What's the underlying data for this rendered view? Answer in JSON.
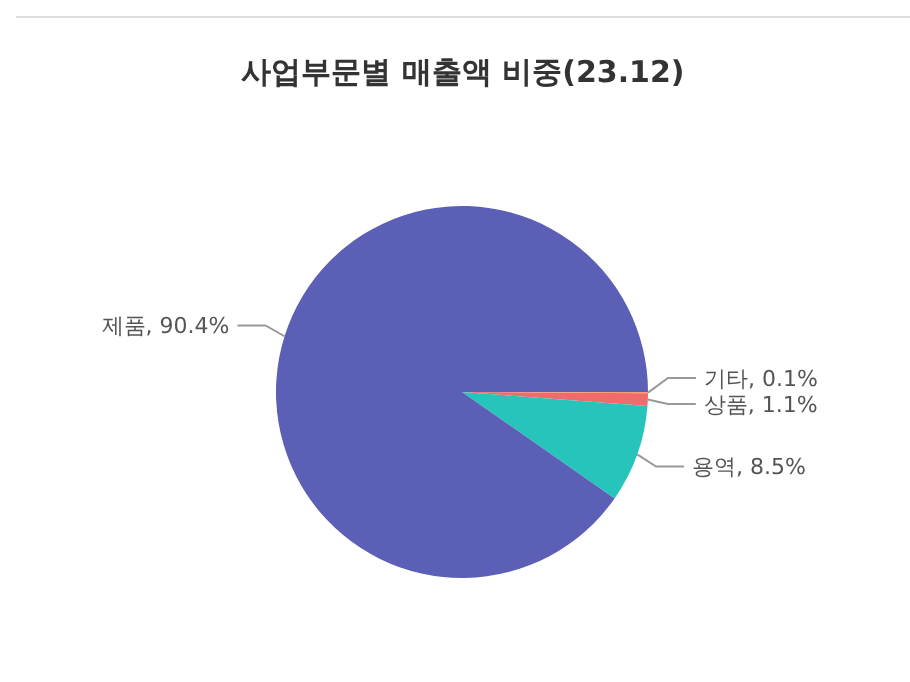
{
  "chart_data": {
    "type": "pie",
    "title": "사업부문별 매출액 비중(23.12)",
    "categories": [
      "기타",
      "상품",
      "용역",
      "제품"
    ],
    "values": [
      0.1,
      1.1,
      8.5,
      90.4
    ],
    "value_labels": [
      "0.1%",
      "1.1%",
      "8.5%",
      "90.4%"
    ],
    "colors": [
      "#f5a35c",
      "#f06b6b",
      "#26c4bb",
      "#5b5fb5"
    ],
    "legend": false
  }
}
